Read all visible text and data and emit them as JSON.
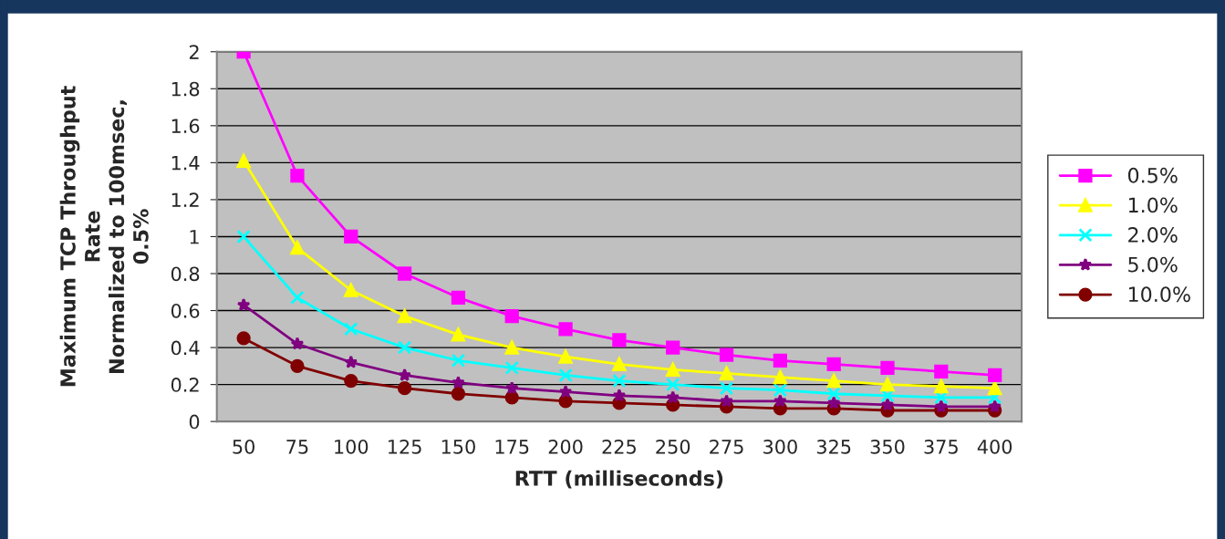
{
  "chart_data": {
    "type": "line",
    "xlabel": "RTT (milliseconds)",
    "ylabel": "Maximum TCP Throughput\nRate\nNormalized to 100msec,\n0.5%",
    "categories": [
      "50",
      "75",
      "100",
      "125",
      "150",
      "175",
      "200",
      "225",
      "250",
      "275",
      "300",
      "325",
      "350",
      "375",
      "400"
    ],
    "series": [
      {
        "name": "0.5%",
        "color": "#ff00ff",
        "marker": "square",
        "values": [
          2,
          1.33,
          1,
          0.8,
          0.67,
          0.57,
          0.5,
          0.44,
          0.4,
          0.36,
          0.33,
          0.31,
          0.29,
          0.27,
          0.25
        ]
      },
      {
        "name": "1.0%",
        "color": "#ffff00",
        "marker": "triangle",
        "values": [
          1.41,
          0.94,
          0.71,
          0.57,
          0.47,
          0.4,
          0.35,
          0.31,
          0.28,
          0.26,
          0.24,
          0.22,
          0.2,
          0.19,
          0.18
        ]
      },
      {
        "name": "2.0%",
        "color": "#00ffff",
        "marker": "cross",
        "values": [
          1,
          0.67,
          0.5,
          0.4,
          0.33,
          0.29,
          0.25,
          0.22,
          0.2,
          0.18,
          0.17,
          0.15,
          0.14,
          0.13,
          0.13
        ]
      },
      {
        "name": "5.0%",
        "color": "#800080",
        "marker": "star",
        "values": [
          0.63,
          0.42,
          0.32,
          0.25,
          0.21,
          0.18,
          0.16,
          0.14,
          0.13,
          0.11,
          0.11,
          0.1,
          0.09,
          0.08,
          0.08
        ]
      },
      {
        "name": "10.0%",
        "color": "#800000",
        "marker": "circle",
        "values": [
          0.45,
          0.3,
          0.22,
          0.18,
          0.15,
          0.13,
          0.11,
          0.1,
          0.09,
          0.08,
          0.07,
          0.07,
          0.06,
          0.06,
          0.06
        ]
      }
    ],
    "ylim": [
      0,
      2
    ],
    "yticks": [
      0,
      0.2,
      0.4,
      0.6,
      0.8,
      1,
      1.2,
      1.4,
      1.6,
      1.8,
      2
    ],
    "grid": "y",
    "legend": "right",
    "line_style": "solid"
  }
}
